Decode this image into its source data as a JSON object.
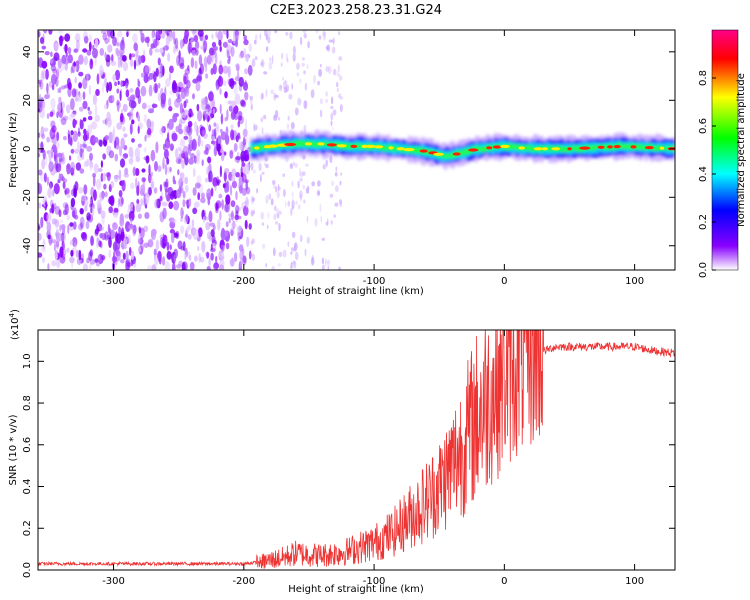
{
  "figure": {
    "title": "C2E3.2023.258.23.31.G24"
  },
  "chart_data": [
    {
      "type": "heatmap",
      "xlabel": "Height of straight line (km)",
      "ylabel": "Frequency (Hz)",
      "xlim": [
        -358,
        131
      ],
      "ylim": [
        -50,
        49
      ],
      "xticks": [
        -300,
        -200,
        -100,
        0,
        100
      ],
      "yticks": [
        -40,
        -20,
        0,
        20,
        40
      ],
      "colorbar": {
        "label": "Normalized spectral amplitude",
        "range": [
          0,
          1
        ],
        "ticks": [
          0.0,
          0.2,
          0.4,
          0.6,
          0.8
        ],
        "colormap": [
          "#ffffff",
          "#8800ff",
          "#0000ff",
          "#00ffff",
          "#00ff00",
          "#ffff00",
          "#ff0000",
          "#ff0088"
        ]
      },
      "features": {
        "noise_region_km": [
          -358,
          -195
        ],
        "sparse_noise_km": [
          -195,
          -125
        ],
        "signal_start_km": -195,
        "signal_center_hz": [
          [
            -195,
            0
          ],
          [
            -180,
            1
          ],
          [
            -160,
            2
          ],
          [
            -140,
            2
          ],
          [
            -120,
            1
          ],
          [
            -100,
            1
          ],
          [
            -80,
            0
          ],
          [
            -60,
            -1
          ],
          [
            -45,
            -3
          ],
          [
            -35,
            -2
          ],
          [
            -20,
            0
          ],
          [
            0,
            1
          ],
          [
            20,
            0
          ],
          [
            50,
            0
          ],
          [
            90,
            1
          ],
          [
            131,
            0
          ]
        ]
      }
    },
    {
      "type": "line",
      "xlabel": "Height of straight line (km)",
      "ylabel": "SNR (10 * v/v)",
      "yscale_label": "(x10",
      "yscale_exp": "4",
      "yscale_close": ")",
      "xlim": [
        -358,
        131
      ],
      "ylim": [
        0,
        1.15
      ],
      "xticks": [
        -300,
        -200,
        -100,
        0,
        100
      ],
      "yticks": [
        0.0,
        0.2,
        0.4,
        0.6,
        0.8,
        1.0
      ],
      "color": "#ee3333",
      "series": [
        {
          "x": [
            -358,
            -300,
            -250,
            -200,
            -185,
            -170,
            -160,
            -140,
            -120,
            -100,
            -85,
            -70,
            -60,
            -50,
            -40,
            -30,
            -20,
            -10,
            0,
            10,
            20,
            30,
            40,
            60,
            80,
            100,
            115,
            131
          ],
          "y": [
            0.03,
            0.03,
            0.03,
            0.03,
            0.04,
            0.06,
            0.08,
            0.07,
            0.09,
            0.13,
            0.18,
            0.27,
            0.33,
            0.4,
            0.5,
            0.62,
            0.75,
            0.85,
            0.92,
            0.98,
            1.02,
            1.05,
            1.07,
            1.07,
            1.07,
            1.07,
            1.05,
            1.04
          ]
        }
      ]
    }
  ]
}
